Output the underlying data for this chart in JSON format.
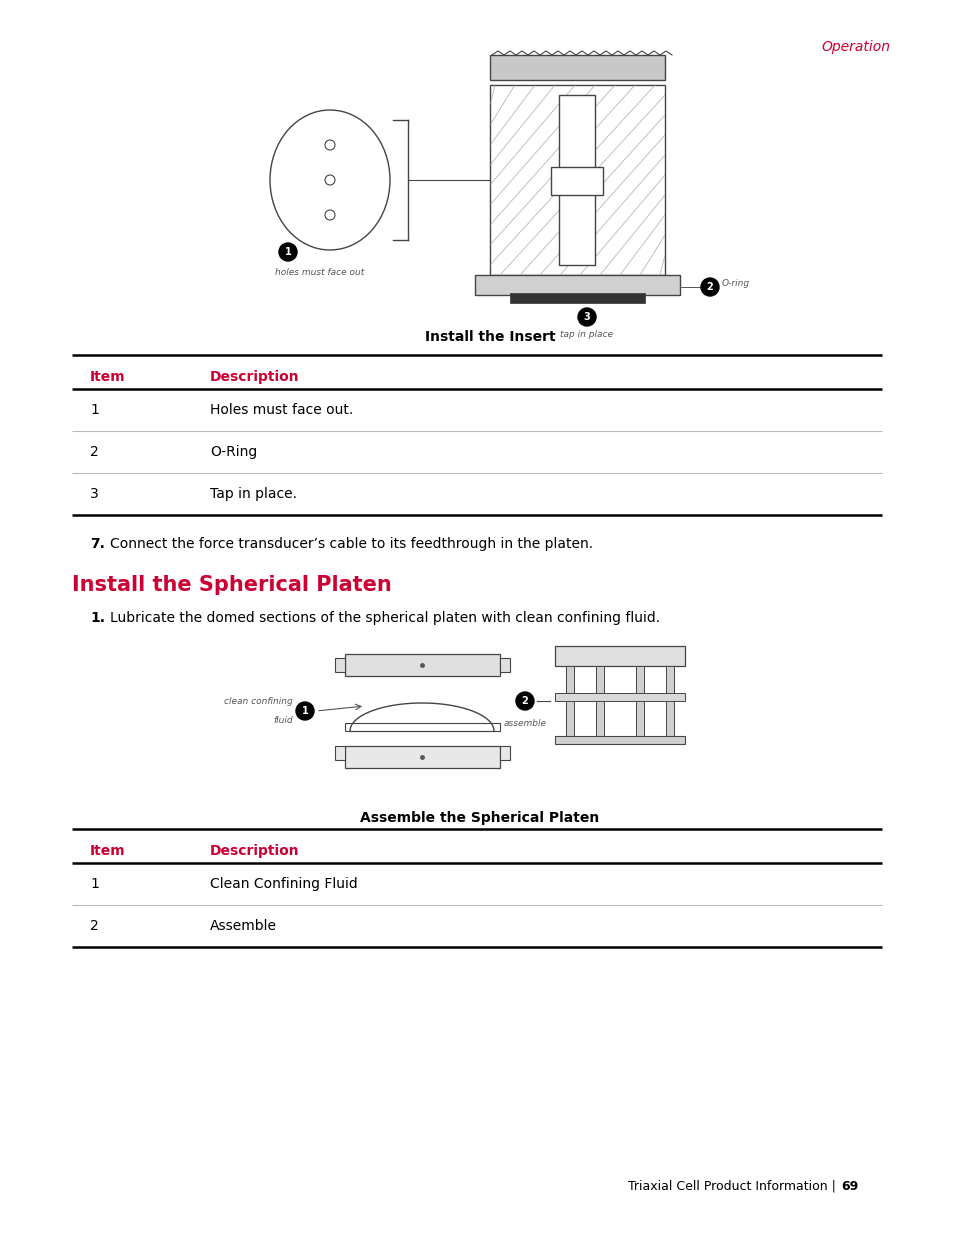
{
  "background_color": "#ffffff",
  "page_header": "Operation",
  "page_header_color": "#cc0033",
  "page_header_fontsize": 10,
  "diagram1_caption": "Install the Insert",
  "diagram1_caption_fontsize": 10,
  "table1_headers": [
    "Item",
    "Description"
  ],
  "table1_rows": [
    [
      "1",
      "Holes must face out."
    ],
    [
      "2",
      "O-Ring"
    ],
    [
      "3",
      "Tap in place."
    ]
  ],
  "step7_text": "Connect the force transducer’s cable to its feedthrough in the platen.",
  "section_heading": "Install the Spherical Platen",
  "section_heading_color": "#cc0033",
  "section_heading_fontsize": 15,
  "step1_text": "Lubricate the domed sections of the spherical platen with clean confining fluid.",
  "diagram2_caption": "Assemble the Spherical Platen",
  "diagram2_caption_fontsize": 10,
  "table2_headers": [
    "Item",
    "Description"
  ],
  "table2_rows": [
    [
      "1",
      "Clean Confining Fluid"
    ],
    [
      "2",
      "Assemble"
    ]
  ],
  "footer_text": "Triaxial Cell Product Information | ",
  "footer_bold": "69",
  "footer_fontsize": 9,
  "header_col1_color": "#cc0033",
  "table_fontsize": 10,
  "body_fontsize": 10,
  "thin_line_color": "#bbbbbb"
}
